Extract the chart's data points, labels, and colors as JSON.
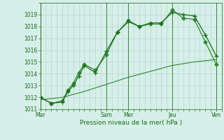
{
  "title": "",
  "xlabel": "Pression niveau de la mer( hPa )",
  "ylabel": "",
  "bg_color": "#d6efe8",
  "grid_color": "#b0d4c8",
  "line_color_main": "#1a6b1a",
  "line_color_smooth": "#2d8a2d",
  "ylim": [
    1011,
    1020
  ],
  "yticks": [
    1011,
    1012,
    1013,
    1014,
    1015,
    1016,
    1017,
    1018,
    1019
  ],
  "day_labels": [
    "Mar",
    "Sam",
    "Mer",
    "Jeu",
    "Ven"
  ],
  "day_positions": [
    0,
    12,
    16,
    24,
    32
  ],
  "series1_x": [
    0,
    2,
    4,
    5,
    6,
    7,
    8,
    10,
    12,
    14,
    16,
    18,
    20,
    22,
    24,
    26,
    28,
    30,
    32
  ],
  "series1_y": [
    1012.0,
    1011.5,
    1011.6,
    1012.5,
    1013.0,
    1013.8,
    1014.7,
    1014.1,
    1015.9,
    1017.5,
    1018.4,
    1018.0,
    1018.3,
    1018.3,
    1019.2,
    1019.0,
    1018.9,
    1017.3,
    1015.5
  ],
  "series2_x": [
    0,
    2,
    4,
    5,
    6,
    7,
    8,
    10,
    12,
    14,
    16,
    18,
    20,
    22,
    24,
    26,
    28,
    30,
    32
  ],
  "series2_y": [
    1012.0,
    1011.5,
    1011.7,
    1012.6,
    1013.2,
    1014.1,
    1014.8,
    1014.3,
    1015.6,
    1017.5,
    1018.5,
    1018.0,
    1018.2,
    1018.2,
    1019.4,
    1018.7,
    1018.6,
    1016.7,
    1014.8
  ],
  "series3_x": [
    0,
    4,
    8,
    12,
    16,
    20,
    24,
    28,
    32
  ],
  "series3_y": [
    1011.8,
    1012.0,
    1012.5,
    1013.1,
    1013.7,
    1014.2,
    1014.7,
    1015.0,
    1015.2
  ],
  "xmin": 0,
  "xmax": 33
}
